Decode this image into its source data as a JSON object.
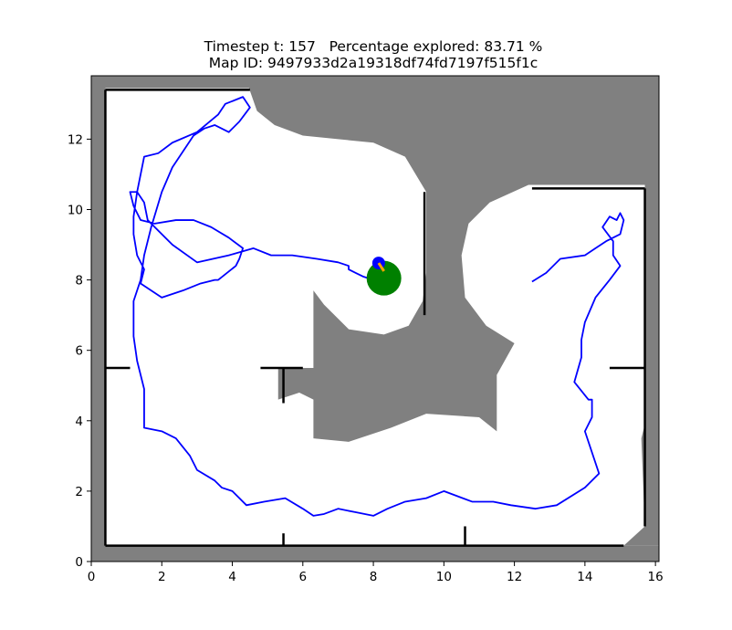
{
  "chart_data": {
    "type": "line",
    "title_line1": "Timestep t: 157   Percentage explored: 83.71 %",
    "title_line2": "Map ID: 9497933d2a19318df74fd7197f515f1c",
    "xlim": [
      0,
      16.1
    ],
    "ylim": [
      0,
      13.8
    ],
    "x_ticks": [
      "0",
      "2",
      "4",
      "6",
      "8",
      "10",
      "12",
      "14",
      "16"
    ],
    "y_ticks": [
      "0",
      "2",
      "4",
      "6",
      "8",
      "10",
      "12"
    ],
    "colors": {
      "unexplored": "#808080",
      "explored": "#ffffff",
      "walls": "#000000",
      "trajectory": "#0000ff",
      "goal": "#008000",
      "agent": "#0000ff",
      "agent_heading": "#ffa500"
    },
    "unexplored_regions": [
      [
        [
          4.35,
          13.8
        ],
        [
          4.7,
          12.8
        ],
        [
          5.2,
          12.4
        ],
        [
          6,
          12.1
        ],
        [
          7,
          12.0
        ],
        [
          8,
          11.9
        ],
        [
          8.9,
          11.5
        ],
        [
          9.5,
          10.5
        ],
        [
          9.5,
          8.2
        ],
        [
          9.4,
          7.4
        ],
        [
          9.0,
          6.7
        ],
        [
          8.3,
          6.45
        ],
        [
          7.3,
          6.6
        ],
        [
          6.6,
          7.3
        ],
        [
          6.3,
          7.7
        ],
        [
          6.3,
          5.5
        ],
        [
          5.3,
          5.5
        ],
        [
          5.3,
          4.6
        ],
        [
          5.9,
          4.8
        ],
        [
          6.3,
          4.6
        ],
        [
          6.3,
          3.5
        ],
        [
          7.3,
          3.4
        ],
        [
          8.5,
          3.8
        ],
        [
          9.5,
          4.2
        ],
        [
          11.0,
          4.1
        ],
        [
          11.5,
          3.7
        ],
        [
          11.5,
          5.3
        ],
        [
          12.0,
          6.2
        ],
        [
          11.2,
          6.7
        ],
        [
          10.6,
          7.5
        ],
        [
          10.5,
          8.7
        ],
        [
          10.7,
          9.6
        ],
        [
          11.3,
          10.2
        ],
        [
          12.4,
          10.7
        ],
        [
          15.7,
          10.7
        ],
        [
          15.7,
          3.9
        ],
        [
          15.6,
          3.5
        ],
        [
          15.7,
          1.0
        ],
        [
          15.1,
          0.45
        ],
        [
          16.1,
          0.45
        ],
        [
          16.1,
          13.8
        ]
      ]
    ],
    "walls": [
      [
        [
          0.4,
          13.4
        ],
        [
          4.5,
          13.4
        ]
      ],
      [
        [
          0.4,
          13.4
        ],
        [
          0.4,
          0.45
        ]
      ],
      [
        [
          0.4,
          0.45
        ],
        [
          15.1,
          0.45
        ]
      ],
      [
        [
          15.7,
          10.6
        ],
        [
          15.7,
          1.0
        ]
      ],
      [
        [
          12.5,
          10.6
        ],
        [
          15.7,
          10.6
        ]
      ],
      [
        [
          9.45,
          10.5
        ],
        [
          9.45,
          7.0
        ]
      ],
      [
        [
          0.4,
          5.5
        ],
        [
          1.1,
          5.5
        ]
      ],
      [
        [
          4.8,
          5.5
        ],
        [
          6.0,
          5.5
        ]
      ],
      [
        [
          5.45,
          5.5
        ],
        [
          5.45,
          4.5
        ]
      ],
      [
        [
          14.7,
          5.5
        ],
        [
          15.7,
          5.5
        ]
      ],
      [
        [
          5.45,
          0.45
        ],
        [
          5.45,
          0.8
        ]
      ],
      [
        [
          10.6,
          0.45
        ],
        [
          10.6,
          1.0
        ]
      ]
    ],
    "trajectory": {
      "x": [
        12.5,
        12.9,
        13.3,
        14.0,
        14.3,
        14.6,
        15.0,
        15.1,
        15.0,
        14.9,
        14.7,
        14.5,
        14.8,
        14.8,
        15.0,
        14.7,
        14.3,
        14.0,
        13.9,
        13.9,
        13.7,
        14.1,
        14.2,
        14.2,
        14.0,
        14.4,
        14.0,
        13.2,
        12.6,
        11.9,
        11.4,
        10.8,
        10.0,
        9.5,
        8.9,
        8.4,
        8.0,
        7.5,
        7.0,
        6.6,
        6.3,
        6.0,
        5.5,
        4.9,
        4.4,
        4.0,
        3.7,
        3.5,
        3.0,
        2.8,
        2.4,
        2.0,
        1.5,
        1.5,
        1.3,
        1.2,
        1.2,
        1.4,
        1.5,
        1.7,
        2.0,
        2.3,
        2.7,
        2.9,
        3.2,
        3.5,
        3.9,
        4.2,
        4.5,
        4.3,
        3.8,
        3.6,
        3.0,
        2.3,
        1.9,
        1.5,
        1.3,
        1.2,
        1.2,
        1.3,
        1.5,
        1.4,
        2.0,
        2.6,
        3.1,
        3.5,
        3.6,
        4.1,
        4.2,
        4.3,
        3.9,
        3.4,
        2.9,
        2.4,
        1.8,
        1.4,
        1.2,
        1.1,
        1.3,
        1.5,
        1.6,
        1.8,
        2.3,
        3.0,
        3.9,
        4.6,
        5.1,
        5.7,
        6.4,
        7.0,
        7.3,
        7.3,
        7.5,
        7.7,
        8.0,
        8.15,
        8.3
      ],
      "y": [
        7.95,
        8.2,
        8.6,
        8.7,
        8.9,
        9.1,
        9.3,
        9.7,
        9.9,
        9.7,
        9.8,
        9.5,
        9.1,
        8.7,
        8.4,
        8.0,
        7.5,
        6.8,
        6.3,
        5.8,
        5.1,
        4.6,
        4.6,
        4.1,
        3.7,
        2.5,
        2.1,
        1.6,
        1.5,
        1.6,
        1.7,
        1.7,
        2.0,
        1.8,
        1.7,
        1.5,
        1.3,
        1.4,
        1.5,
        1.35,
        1.3,
        1.5,
        1.8,
        1.7,
        1.6,
        2.0,
        2.1,
        2.3,
        2.6,
        3.0,
        3.5,
        3.7,
        3.8,
        4.9,
        5.7,
        6.4,
        7.4,
        8.0,
        8.7,
        9.5,
        10.5,
        11.2,
        11.8,
        12.1,
        12.3,
        12.4,
        12.2,
        12.5,
        12.9,
        13.2,
        13.0,
        12.7,
        12.2,
        11.9,
        11.6,
        11.5,
        10.5,
        9.8,
        9.3,
        8.7,
        8.3,
        7.9,
        7.5,
        7.7,
        7.9,
        8.0,
        8.0,
        8.4,
        8.6,
        8.9,
        9.2,
        9.5,
        9.7,
        9.7,
        9.6,
        9.7,
        10.1,
        10.5,
        10.5,
        10.2,
        9.7,
        9.5,
        9.0,
        8.5,
        8.7,
        8.9,
        8.7,
        8.7,
        8.6,
        8.5,
        8.4,
        8.3,
        8.2,
        8.1,
        8.0,
        7.9,
        7.8
      ]
    },
    "goal": {
      "x": 8.3,
      "y": 8.05
    },
    "agent": {
      "x": 8.15,
      "y": 8.48
    },
    "agent_heading_end": {
      "x": 8.3,
      "y": 8.25
    }
  }
}
